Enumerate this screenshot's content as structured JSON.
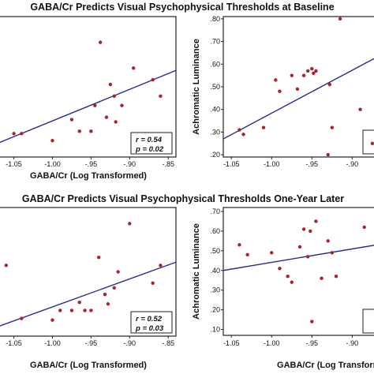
{
  "chart_data": [
    {
      "type": "scatter",
      "title": "GABA/Cr Predicts Visual Psychophysical Thresholds at Baseline",
      "xlabel": "GABA/Cr (Log Transformed)",
      "ylabel": "",
      "xlim": [
        -1.07,
        -0.84
      ],
      "ylim": [
        0.25,
        0.85
      ],
      "xticks": [
        -1.05,
        -1.0,
        -0.95,
        -0.9,
        -0.85
      ],
      "xtick_labels": [
        "-1.05",
        "-1.00",
        "-.95",
        "-.90",
        "-.85"
      ],
      "yticks": [],
      "ytick_labels": [],
      "grid": false,
      "x": [
        -1.05,
        -1.04,
        -1.0,
        -0.975,
        -0.965,
        -0.95,
        -0.945,
        -0.938,
        -0.93,
        -0.925,
        -0.92,
        -0.918,
        -0.91,
        -0.895,
        -0.87,
        -0.86
      ],
      "y": [
        0.35,
        0.35,
        0.32,
        0.41,
        0.36,
        0.36,
        0.47,
        0.74,
        0.42,
        0.56,
        0.51,
        0.4,
        0.47,
        0.63,
        0.58,
        0.51
      ],
      "fit_line": [
        [
          -1.07,
          0.31
        ],
        [
          -0.84,
          0.62
        ]
      ],
      "annotations": [
        "r = 0.54",
        "p = 0.02"
      ]
    },
    {
      "type": "scatter",
      "title": "",
      "xlabel": "",
      "ylabel": "Achromatic Luminance",
      "xlim": [
        -1.06,
        -0.87
      ],
      "ylim": [
        0.19,
        0.81
      ],
      "xticks": [
        -1.05,
        -1.0,
        -0.95,
        -0.9
      ],
      "xtick_labels": [
        "-1.05",
        "-1.00",
        "-.95",
        "-.90"
      ],
      "yticks": [
        0.2,
        0.3,
        0.4,
        0.5,
        0.6,
        0.7,
        0.8
      ],
      "ytick_labels": [
        ".20",
        ".30",
        ".40",
        ".50",
        ".60",
        ".70",
        ".80"
      ],
      "grid": false,
      "x": [
        -1.04,
        -1.035,
        -1.01,
        -0.995,
        -0.99,
        -0.975,
        -0.968,
        -0.96,
        -0.955,
        -0.95,
        -0.948,
        -0.945,
        -0.93,
        -0.928,
        -0.925,
        -0.915,
        -0.89,
        -0.875
      ],
      "y": [
        0.31,
        0.29,
        0.32,
        0.53,
        0.48,
        0.55,
        0.49,
        0.55,
        0.57,
        0.58,
        0.56,
        0.57,
        0.2,
        0.51,
        0.32,
        0.8,
        0.4,
        0.25
      ],
      "fit_line": [
        [
          -1.06,
          0.27
        ],
        [
          -0.87,
          0.63
        ]
      ],
      "annotations": []
    },
    {
      "type": "scatter",
      "title": "GABA/Cr Predicts Visual Psychophysical Thresholds One-Year Later",
      "xlabel": "GABA/Cr (Log Transformed)",
      "ylabel": "",
      "xlim": [
        -1.07,
        -0.84
      ],
      "ylim": [
        0.0,
        0.8
      ],
      "xticks": [
        -1.05,
        -1.0,
        -0.95,
        -0.9,
        -0.85
      ],
      "xtick_labels": [
        "-1.05",
        "-1.00",
        "-.95",
        "-.90",
        "-.85"
      ],
      "yticks": [],
      "ytick_labels": [],
      "grid": false,
      "x": [
        -1.06,
        -1.04,
        -1.0,
        -0.99,
        -0.975,
        -0.965,
        -0.958,
        -0.95,
        -0.94,
        -0.932,
        -0.928,
        -0.92,
        -0.915,
        -0.9,
        -0.87,
        -0.86
      ],
      "y": [
        0.44,
        0.11,
        0.1,
        0.16,
        0.16,
        0.21,
        0.16,
        0.16,
        0.49,
        0.26,
        0.2,
        0.3,
        0.4,
        0.7,
        0.33,
        0.44
      ],
      "fit_line": [
        [
          -1.07,
          0.06
        ],
        [
          -0.84,
          0.46
        ]
      ],
      "annotations": [
        "r = 0.52",
        "p = 0.03"
      ]
    },
    {
      "type": "scatter",
      "title": "",
      "xlabel": "GABA/Cr (Log Transformed)",
      "ylabel": "Achromatic Luminance",
      "xlim": [
        -1.06,
        -0.87
      ],
      "ylim": [
        0.07,
        0.72
      ],
      "xticks": [
        -1.05,
        -1.0,
        -0.95,
        -0.9
      ],
      "xtick_labels": [
        "-1.05",
        "-1.00",
        "-.95",
        "-.90"
      ],
      "yticks": [
        0.1,
        0.2,
        0.3,
        0.4,
        0.5,
        0.6,
        0.7
      ],
      "ytick_labels": [
        ".10",
        ".20",
        ".30",
        ".40",
        ".50",
        ".60",
        ".70"
      ],
      "grid": false,
      "x": [
        -1.04,
        -1.03,
        -1.0,
        -0.99,
        -0.98,
        -0.975,
        -0.965,
        -0.96,
        -0.955,
        -0.952,
        -0.95,
        -0.945,
        -0.938,
        -0.93,
        -0.925,
        -0.92,
        -0.885
      ],
      "y": [
        0.53,
        0.48,
        0.49,
        0.41,
        0.37,
        0.34,
        0.52,
        0.61,
        0.47,
        0.6,
        0.14,
        0.65,
        0.36,
        0.55,
        0.49,
        0.37,
        0.62
      ],
      "fit_line": [
        [
          -1.06,
          0.4
        ],
        [
          -0.87,
          0.53
        ]
      ],
      "annotations": []
    }
  ]
}
